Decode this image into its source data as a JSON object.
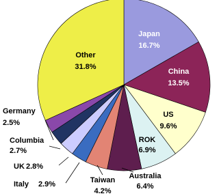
{
  "chart_data": {
    "type": "pie",
    "categories": [
      "Japan",
      "China",
      "US",
      "ROK",
      "Australia",
      "Taiwan",
      "Italy",
      "UK",
      "Columbia",
      "Germany",
      "Other"
    ],
    "values": [
      16.7,
      13.5,
      9.6,
      6.9,
      6.4,
      4.2,
      2.9,
      2.8,
      2.7,
      2.5,
      31.8
    ],
    "value_labels": [
      "16.7%",
      "13.5%",
      "9.6%",
      "6.9%",
      "6.4%",
      "4.2%",
      "2.9%",
      "2.8%",
      "2.7%",
      "2.5%",
      "31.8%"
    ],
    "colors": [
      "#9a9ade",
      "#8c2458",
      "#ffffcc",
      "#dcf2f2",
      "#5e1e4e",
      "#e28474",
      "#3a6cc0",
      "#ccccff",
      "#213463",
      "#8a48aa",
      "#eeee48"
    ]
  }
}
